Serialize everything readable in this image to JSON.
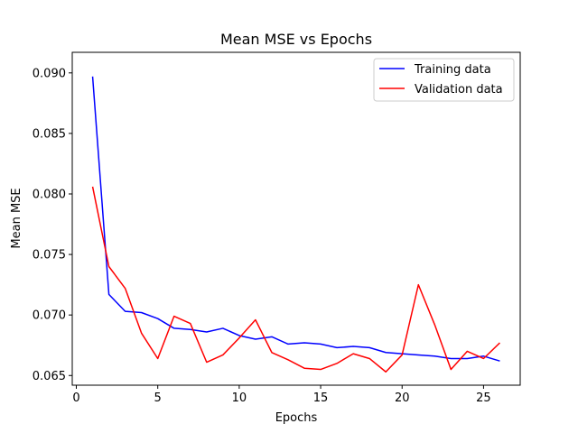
{
  "chart_data": {
    "type": "line",
    "title": "Mean MSE vs Epochs",
    "xlabel": "Epochs",
    "ylabel": "Mean MSE",
    "xlim": [
      -0.25,
      27.25
    ],
    "ylim": [
      0.0642,
      0.0917
    ],
    "xticks": [
      0,
      5,
      10,
      15,
      20,
      25
    ],
    "yticks": [
      0.065,
      0.07,
      0.075,
      0.08,
      0.085,
      0.09
    ],
    "ytick_labels": [
      "0.065",
      "0.070",
      "0.075",
      "0.080",
      "0.085",
      "0.090"
    ],
    "grid": false,
    "legend_position": "top-right",
    "x": [
      1,
      2,
      3,
      4,
      5,
      6,
      7,
      8,
      9,
      10,
      11,
      12,
      13,
      14,
      15,
      16,
      17,
      18,
      19,
      20,
      21,
      22,
      23,
      24,
      25,
      26
    ],
    "series": [
      {
        "name": "Training data",
        "color": "#0000ff",
        "values": [
          0.0897,
          0.0717,
          0.0703,
          0.0702,
          0.0697,
          0.0689,
          0.0688,
          0.0686,
          0.0689,
          0.0683,
          0.068,
          0.0682,
          0.0676,
          0.0677,
          0.0676,
          0.0673,
          0.0674,
          0.0673,
          0.0669,
          0.0668,
          0.0667,
          0.0666,
          0.0664,
          0.0664,
          0.0666,
          0.0662
        ]
      },
      {
        "name": "Validation data",
        "color": "#ff0000",
        "values": [
          0.0806,
          0.074,
          0.0722,
          0.0685,
          0.0664,
          0.0699,
          0.0693,
          0.0661,
          0.0667,
          0.0681,
          0.0696,
          0.0669,
          0.0663,
          0.0656,
          0.0655,
          0.066,
          0.0668,
          0.0664,
          0.0653,
          0.0667,
          0.0725,
          0.0692,
          0.0655,
          0.067,
          0.0664,
          0.0677
        ]
      }
    ]
  }
}
